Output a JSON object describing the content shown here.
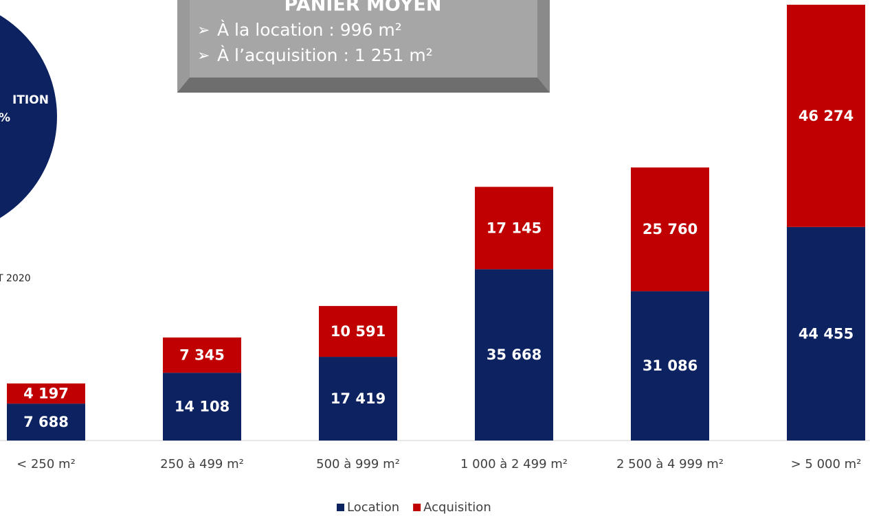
{
  "chart_data": {
    "type": "bar",
    "stacked": true,
    "categories": [
      "< 250 m²",
      "250 à 499 m²",
      "500 à 999 m²",
      "1 000 à 2 499 m²",
      "2 500 à 4 999 m²",
      "> 5 000 m²"
    ],
    "series": [
      {
        "name": "Location",
        "color": "#0d2260",
        "values": [
          7688,
          14108,
          17419,
          35668,
          31086,
          44455
        ],
        "value_labels": [
          "7 688",
          "14 108",
          "17 419",
          "35 668",
          "31 086",
          "44 455"
        ]
      },
      {
        "name": "Acquisition",
        "color": "#c00000",
        "values": [
          4197,
          7345,
          10591,
          17145,
          25760,
          46274
        ],
        "value_labels": [
          "4 197",
          "7 345",
          "10 591",
          "17 145",
          "25 760",
          "46 274"
        ]
      }
    ],
    "ylim": [
      0,
      91000
    ],
    "legend": "bottom",
    "annotation_box": {
      "title": "PANIER MOYEN",
      "lines": [
        "À la location : 996 m²",
        "À l’acquisition : 1 251 m²"
      ]
    },
    "pie_fragment_labels": [
      "ITION",
      "%"
    ],
    "note": "T 2020"
  }
}
